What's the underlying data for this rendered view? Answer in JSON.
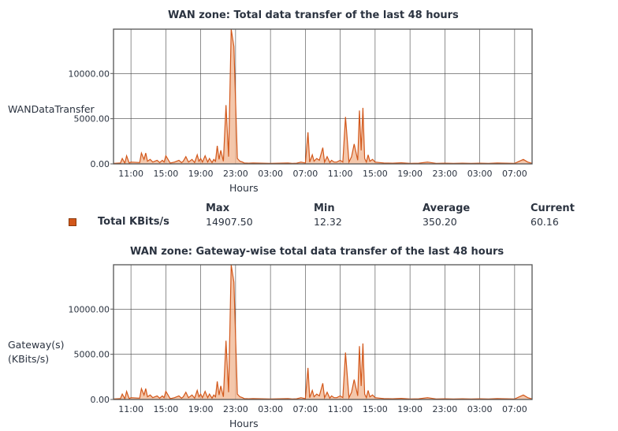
{
  "colors": {
    "series": "#d2571a",
    "fill": "#f0b48f",
    "grid": "#444444",
    "frame": "#555555"
  },
  "chart_data": [
    {
      "type": "area",
      "title": "WAN zone: Total data transfer of the last 48 hours",
      "ylabel": "WANDataTransfer",
      "xlabel": "Hours",
      "x_ticks": [
        "11:00",
        "15:00",
        "19:00",
        "23:00",
        "03:00",
        "07:00",
        "11:00",
        "15:00",
        "19:00",
        "23:00",
        "03:00",
        "07:00"
      ],
      "y_ticks": [
        "0.00",
        "5000.00",
        "10000.00"
      ],
      "ylim": [
        0,
        14907.5
      ],
      "grid": true,
      "series": [
        {
          "name": "Total KBits/s",
          "x_hours": [
            0,
            0.8,
            1,
            1.3,
            1.5,
            1.8,
            2,
            3,
            3.2,
            3.5,
            3.7,
            3.9,
            4.2,
            4.5,
            5,
            5.3,
            5.6,
            5.8,
            6,
            6.5,
            7,
            7.5,
            7.8,
            8,
            8.3,
            8.6,
            9,
            9.3,
            9.6,
            9.8,
            10,
            10.2,
            10.5,
            10.8,
            11,
            11.3,
            11.5,
            11.7,
            11.9,
            12.1,
            12.3,
            12.6,
            12.9,
            13.2,
            13.5,
            13.8,
            14.2,
            14.5,
            14.8,
            15,
            15.5,
            16,
            17,
            18,
            19,
            20,
            20.5,
            21,
            21.5,
            22,
            22.3,
            22.5,
            22.8,
            23,
            23.3,
            23.6,
            24,
            24.2,
            24.5,
            24.8,
            25,
            25.3,
            25.6,
            26,
            26.3,
            26.6,
            27,
            27.3,
            27.6,
            28,
            28.2,
            28.4,
            28.6,
            28.8,
            29,
            29.2,
            29.4,
            29.7,
            30,
            30.5,
            31,
            32,
            33,
            34,
            35,
            36,
            37,
            38,
            39,
            40,
            41,
            42,
            43,
            44,
            45,
            46,
            47,
            47.5,
            48
          ],
          "values": [
            50,
            100,
            600,
            80,
            900,
            100,
            200,
            150,
            1200,
            500,
            1200,
            300,
            500,
            200,
            400,
            150,
            400,
            200,
            900,
            100,
            200,
            400,
            150,
            300,
            800,
            200,
            500,
            150,
            1000,
            300,
            600,
            200,
            900,
            200,
            600,
            150,
            500,
            300,
            2000,
            500,
            1500,
            300,
            6500,
            800,
            14900,
            13000,
            600,
            300,
            200,
            100,
            80,
            100,
            80,
            60,
            80,
            100,
            60,
            80,
            200,
            100,
            3500,
            200,
            1000,
            300,
            600,
            400,
            1800,
            200,
            800,
            150,
            400,
            200,
            200,
            400,
            200,
            5200,
            200,
            800,
            2200,
            400,
            5900,
            1500,
            6200,
            600,
            200,
            1000,
            300,
            500,
            200,
            150,
            100,
            80,
            120,
            60,
            80,
            200,
            60,
            80,
            60,
            80,
            50,
            80,
            60,
            100,
            80,
            60,
            500,
            200,
            60
          ]
        }
      ],
      "legend": {
        "headers": [
          "Max",
          "Min",
          "Average",
          "Current"
        ],
        "name": "Total KBits/s",
        "values": [
          "14907.50",
          "12.32",
          "350.20",
          "60.16"
        ]
      }
    },
    {
      "type": "area",
      "title": "WAN zone: Gateway-wise total data transfer of the last 48 hours",
      "ylabel": "Gateway(s)\n(KBits/s)",
      "ylabel_lines": [
        "Gateway(s)",
        "(KBits/s)"
      ],
      "xlabel": "Hours",
      "x_ticks": [
        "11:00",
        "15:00",
        "19:00",
        "23:00",
        "03:00",
        "07:00",
        "11:00",
        "15:00",
        "19:00",
        "23:00",
        "03:00",
        "07:00"
      ],
      "y_ticks": [
        "0.00",
        "5000.00",
        "10000.00"
      ],
      "ylim": [
        0,
        14907.5
      ],
      "grid": true
    }
  ]
}
